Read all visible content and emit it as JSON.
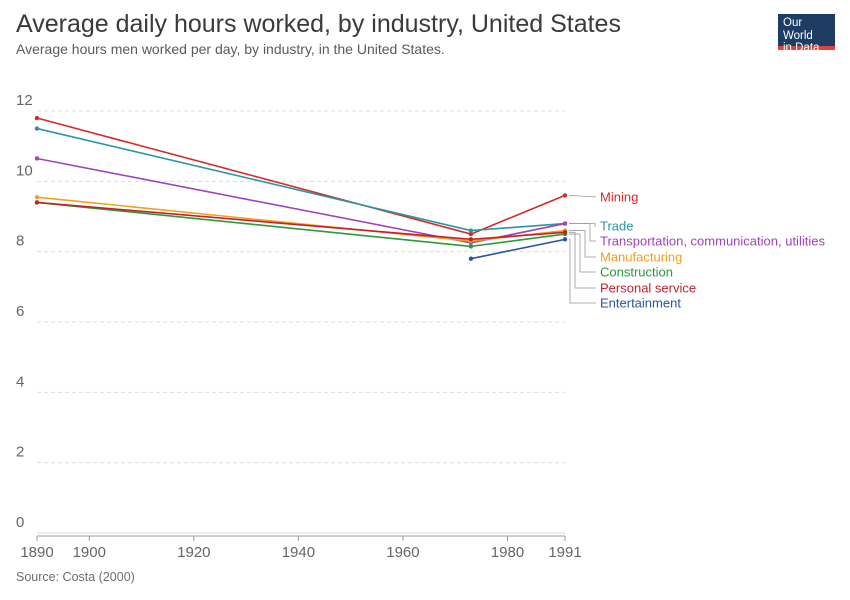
{
  "header": {
    "title": "Average daily hours worked, by industry, United States",
    "subtitle": "Average hours men worked per day, by industry, in the United States."
  },
  "logo": {
    "line1": "Our World",
    "line2": "in Data"
  },
  "footer": {
    "source": "Source: Costa (2000)"
  },
  "chart_data": {
    "type": "line",
    "title": "Average daily hours worked, by industry, United States",
    "subtitle": "Average hours men worked per day, by industry, in the United States.",
    "xlabel": "",
    "ylabel": "",
    "xlim": [
      1890,
      1991
    ],
    "ylim": [
      0,
      12
    ],
    "x_ticks": [
      1890,
      1900,
      1920,
      1940,
      1960,
      1980,
      1991
    ],
    "y_ticks": [
      0,
      2,
      4,
      6,
      8,
      10,
      12
    ],
    "grid": "horizontal dashed",
    "legend": "right, line-end labels",
    "series": [
      {
        "name": "Mining",
        "color": "#d42b2b",
        "points": [
          [
            1890,
            11.8
          ],
          [
            1973,
            8.5
          ],
          [
            1991,
            9.6
          ]
        ]
      },
      {
        "name": "Trade",
        "color": "#2a95a3",
        "points": [
          [
            1890,
            11.5
          ],
          [
            1973,
            8.6
          ],
          [
            1991,
            8.8
          ]
        ]
      },
      {
        "name": "Transportation, communication, utilities",
        "color": "#a043bd",
        "points": [
          [
            1890,
            10.65
          ],
          [
            1973,
            8.25
          ],
          [
            1991,
            8.8
          ]
        ]
      },
      {
        "name": "Manufacturing",
        "color": "#f0a020",
        "points": [
          [
            1890,
            9.55
          ],
          [
            1973,
            8.3
          ],
          [
            1991,
            8.6
          ]
        ]
      },
      {
        "name": "Construction",
        "color": "#2b9a3a",
        "points": [
          [
            1890,
            9.4
          ],
          [
            1973,
            8.15
          ],
          [
            1991,
            8.5
          ]
        ]
      },
      {
        "name": "Personal service",
        "color": "#c4222a",
        "points": [
          [
            1890,
            9.4
          ],
          [
            1973,
            8.35
          ],
          [
            1991,
            8.55
          ]
        ]
      },
      {
        "name": "Entertainment",
        "color": "#2d52a0",
        "points": [
          [
            1973,
            7.8
          ],
          [
            1991,
            8.35
          ]
        ]
      }
    ]
  }
}
